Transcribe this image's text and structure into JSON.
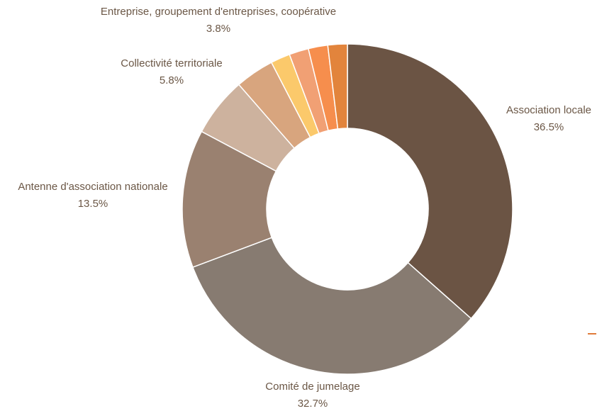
{
  "chart_data": {
    "type": "pie",
    "donut": true,
    "title": "",
    "slices": [
      {
        "label": "Association locale",
        "value": 36.5,
        "pct_label": "36.5%",
        "color": "#6b5444",
        "show_label": true
      },
      {
        "label": "Comité de jumelage",
        "value": 32.7,
        "pct_label": "32.7%",
        "color": "#877b71",
        "show_label": true
      },
      {
        "label": "Antenne d'association nationale",
        "value": 13.5,
        "pct_label": "13.5%",
        "color": "#9a8170",
        "show_label": true
      },
      {
        "label": "Collectivité territoriale",
        "value": 5.8,
        "pct_label": "5.8%",
        "color": "#cdb29e",
        "show_label": true
      },
      {
        "label": "Entreprise, groupement d'entreprises, coopérative",
        "value": 3.8,
        "pct_label": "3.8%",
        "color": "#d8a57e",
        "show_label": true
      },
      {
        "label": "",
        "value": 1.9,
        "pct_label": "",
        "color": "#fbc96b",
        "show_label": false
      },
      {
        "label": "",
        "value": 1.9,
        "pct_label": "",
        "color": "#f1a074",
        "show_label": false
      },
      {
        "label": "",
        "value": 1.9,
        "pct_label": "",
        "color": "#f68e4d",
        "show_label": false
      },
      {
        "label": "",
        "value": 1.9,
        "pct_label": "",
        "color": "#e2843c",
        "show_label": false
      }
    ]
  },
  "accent_color": "#e07b3a"
}
